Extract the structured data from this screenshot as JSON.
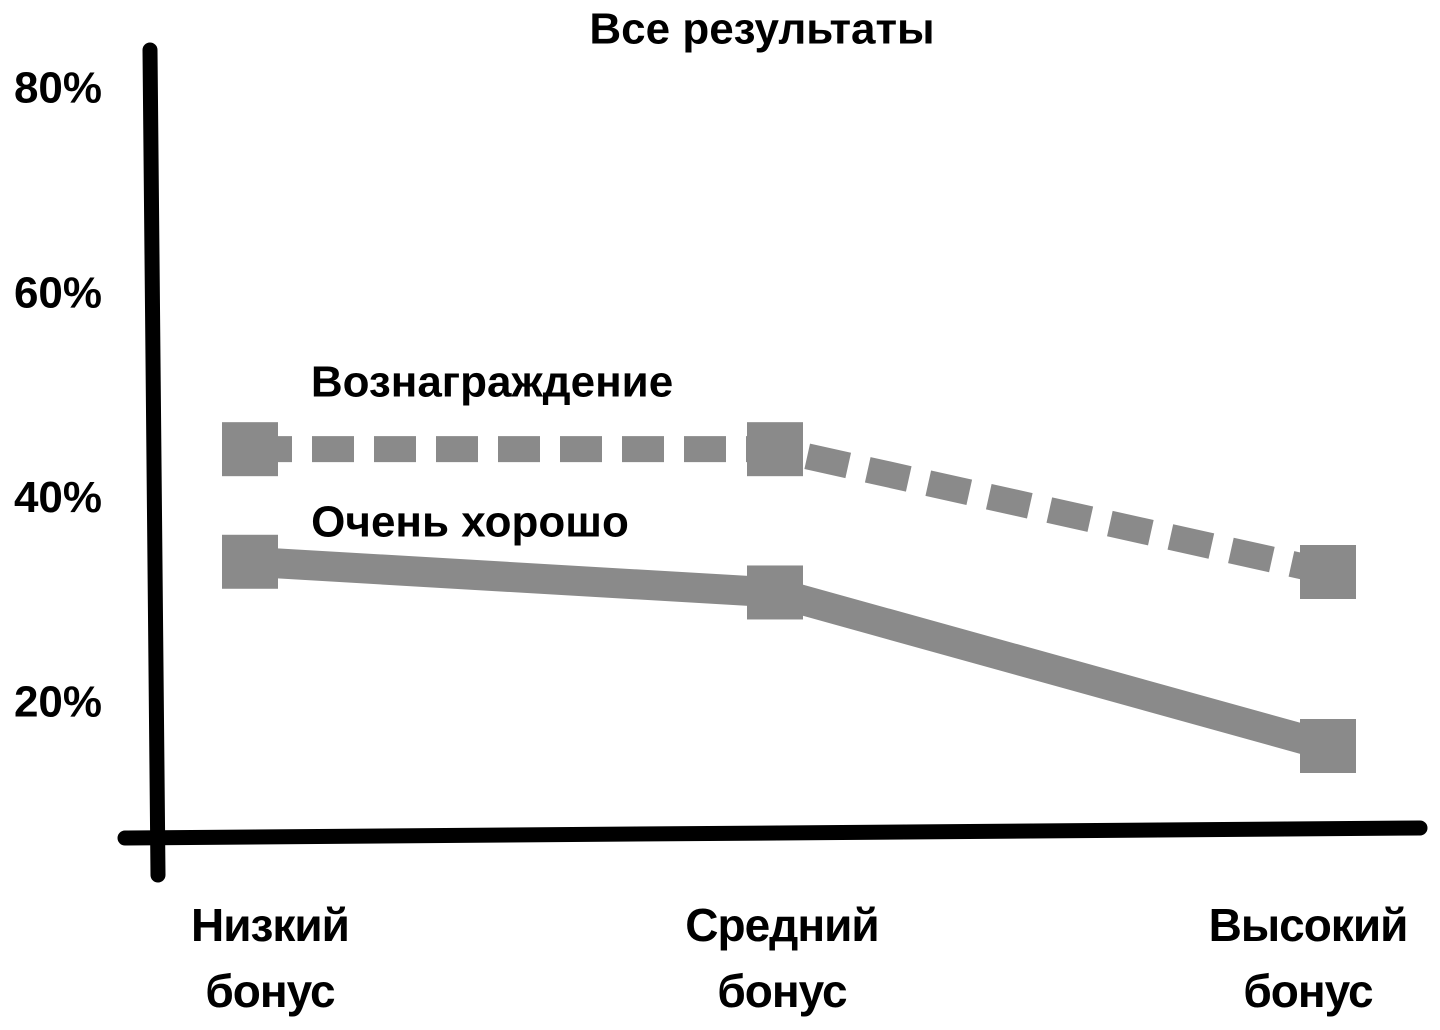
{
  "chart_data": {
    "type": "line",
    "title": "Все результаты",
    "categories": [
      "Низкий бонус",
      "Средний бонус",
      "Высокий бонус"
    ],
    "series": [
      {
        "name": "Вознаграждение",
        "color": "#8a8a8a",
        "style": "dashed",
        "values": [
          45,
          45,
          33
        ]
      },
      {
        "name": "Очень хорошо",
        "color": "#8a8a8a",
        "style": "solid",
        "values": [
          34,
          31,
          16
        ]
      }
    ],
    "ylim": [
      7.5,
      84
    ],
    "yticks": [
      {
        "value": 20,
        "label": "20%"
      },
      {
        "value": 40,
        "label": "40%"
      },
      {
        "value": 60,
        "label": "60%"
      },
      {
        "value": 80,
        "label": "80%"
      }
    ],
    "grid": false
  }
}
